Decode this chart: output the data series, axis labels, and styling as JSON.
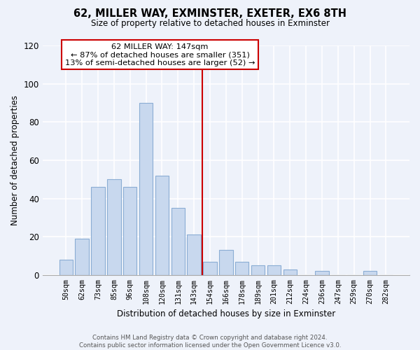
{
  "title": "62, MILLER WAY, EXMINSTER, EXETER, EX6 8TH",
  "subtitle": "Size of property relative to detached houses in Exminster",
  "xlabel": "Distribution of detached houses by size in Exminster",
  "ylabel": "Number of detached properties",
  "bar_labels": [
    "50sqm",
    "62sqm",
    "73sqm",
    "85sqm",
    "96sqm",
    "108sqm",
    "120sqm",
    "131sqm",
    "143sqm",
    "154sqm",
    "166sqm",
    "178sqm",
    "189sqm",
    "201sqm",
    "212sqm",
    "224sqm",
    "236sqm",
    "247sqm",
    "259sqm",
    "270sqm",
    "282sqm"
  ],
  "bar_heights": [
    8,
    19,
    46,
    50,
    46,
    90,
    52,
    35,
    21,
    7,
    13,
    7,
    5,
    5,
    3,
    0,
    2,
    0,
    0,
    2,
    0
  ],
  "bar_color": "#c8d8ee",
  "bar_edge_color": "#8badd4",
  "vline_x": 8.5,
  "vline_color": "#cc0000",
  "annotation_title": "62 MILLER WAY: 147sqm",
  "annotation_line1": "← 87% of detached houses are smaller (351)",
  "annotation_line2": "13% of semi-detached houses are larger (52) →",
  "annotation_box_color": "#ffffff",
  "annotation_box_edge": "#cc0000",
  "ylim": [
    0,
    120
  ],
  "yticks": [
    0,
    20,
    40,
    60,
    80,
    100,
    120
  ],
  "footnote1": "Contains HM Land Registry data © Crown copyright and database right 2024.",
  "footnote2": "Contains public sector information licensed under the Open Government Licence v3.0.",
  "background_color": "#eef2fa"
}
